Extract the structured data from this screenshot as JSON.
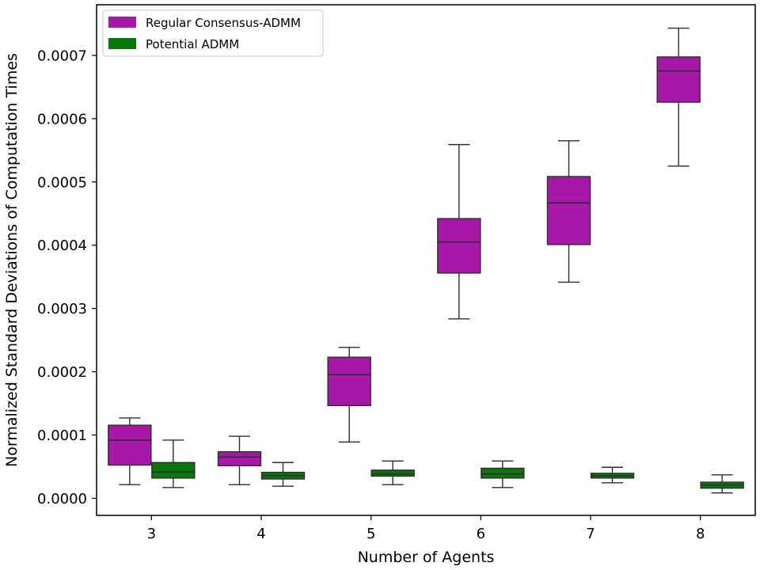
{
  "chart_data": {
    "type": "box",
    "xlabel": "Number of Agents",
    "ylabel": "Normalized Standard Deviations of Computation Times",
    "categories": [
      "3",
      "4",
      "5",
      "6",
      "7",
      "8"
    ],
    "ylim": [
      -2.7e-05,
      0.00078
    ],
    "yticks": [
      0,
      0.0001,
      0.0002,
      0.0003,
      0.0004,
      0.0005,
      0.0006,
      0.0007
    ],
    "ytick_labels": [
      "0.0000",
      "0.0001",
      "0.0002",
      "0.0003",
      "0.0004",
      "0.0005",
      "0.0006",
      "0.0007"
    ],
    "grid": false,
    "legend_position": "top-left",
    "series": [
      {
        "name": "Regular Consensus-ADMM",
        "color": "#a818a8",
        "boxes": [
          {
            "min": 2.15e-05,
            "q1": 5.25e-05,
            "median": 9.2e-05,
            "q3": 0.0001155,
            "max": 0.000127
          },
          {
            "min": 2.15e-05,
            "q1": 5.15e-05,
            "median": 6.5e-05,
            "q3": 7.35e-05,
            "max": 9.8e-05
          },
          {
            "min": 8.9e-05,
            "q1": 0.0001465,
            "median": 0.0001955,
            "q3": 0.000223,
            "max": 0.0002385
          },
          {
            "min": 0.0002835,
            "q1": 0.000356,
            "median": 0.000405,
            "q3": 0.000442,
            "max": 0.000559
          },
          {
            "min": 0.0003415,
            "q1": 0.000401,
            "median": 0.000467,
            "q3": 0.0005085,
            "max": 0.000565
          },
          {
            "min": 0.000525,
            "q1": 0.000626,
            "median": 0.0006755,
            "q3": 0.0006975,
            "max": 0.000743
          }
        ]
      },
      {
        "name": "Potential ADMM",
        "color": "#0b760b",
        "boxes": [
          {
            "min": 1.7e-05,
            "q1": 3.2e-05,
            "median": 4.15e-05,
            "q3": 5.65e-05,
            "max": 9.2e-05
          },
          {
            "min": 1.9e-05,
            "q1": 3.05e-05,
            "median": 3.6e-05,
            "q3": 4.1e-05,
            "max": 5.65e-05
          },
          {
            "min": 2.15e-05,
            "q1": 3.5e-05,
            "median": 3.85e-05,
            "q3": 4.45e-05,
            "max": 5.9e-05
          },
          {
            "min": 1.7e-05,
            "q1": 3.2e-05,
            "median": 3.85e-05,
            "q3": 4.75e-05,
            "max": 5.9e-05
          },
          {
            "min": 2.45e-05,
            "q1": 3.2e-05,
            "median": 3.55e-05,
            "q3": 3.95e-05,
            "max": 4.9e-05
          },
          {
            "min": 8.5e-06,
            "q1": 1.6e-05,
            "median": 2.1e-05,
            "q3": 2.55e-05,
            "max": 3.7e-05
          }
        ]
      }
    ]
  }
}
